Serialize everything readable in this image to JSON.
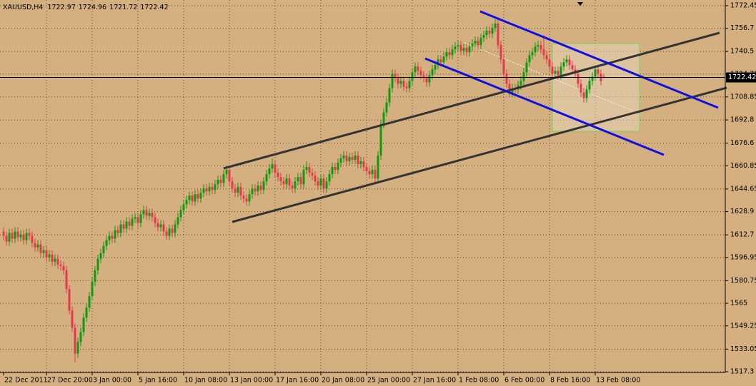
{
  "chart_data": {
    "type": "candlestick",
    "symbol": "XAUUSD,H4",
    "up_color": "#109a10",
    "down_color": "#e23a4c",
    "grid": true,
    "xlim": [
      -1.25,
      252.5
    ],
    "ylim": [
      1516.8,
      1776.4
    ],
    "yticks": [
      1517.3,
      1533.05,
      1549.25,
      1565.0,
      1580.75,
      1596.95,
      1612.7,
      1628.9,
      1644.65,
      1660.85,
      1676.6,
      1692.8,
      1708.85,
      1724.75,
      1740.5,
      1756.7,
      1772.45
    ],
    "xticks": [
      {
        "value": 0,
        "label": "22 Dec 2011"
      },
      {
        "value": 15,
        "label": "27 Dec 20:00"
      },
      {
        "value": 31,
        "label": "3 Jan 00:00"
      },
      {
        "value": 47,
        "label": "5 Jan 16:00"
      },
      {
        "value": 63,
        "label": "10 Jan 08:00"
      },
      {
        "value": 79,
        "label": "13 Jan 00:00"
      },
      {
        "value": 95,
        "label": "17 Jan 16:00"
      },
      {
        "value": 111,
        "label": "20 Jan 08:00"
      },
      {
        "value": 127,
        "label": "25 Jan 00:00"
      },
      {
        "value": 143,
        "label": "27 Jan 16:00"
      },
      {
        "value": 159,
        "label": "1 Feb 08:00"
      },
      {
        "value": 175,
        "label": "6 Feb 00:00"
      },
      {
        "value": 191,
        "label": "8 Feb 16:00"
      },
      {
        "value": 207,
        "label": "13 Feb 08:00"
      }
    ],
    "candles": [
      [
        1615,
        1618,
        1609,
        1612
      ],
      [
        1612,
        1615,
        1605,
        1608
      ],
      [
        1608,
        1617,
        1605,
        1614
      ],
      [
        1614,
        1617,
        1607,
        1610
      ],
      [
        1610,
        1618,
        1607,
        1615
      ],
      [
        1615,
        1618,
        1608,
        1611
      ],
      [
        1611,
        1616,
        1608,
        1613
      ],
      [
        1613,
        1616,
        1606,
        1609
      ],
      [
        1609,
        1617,
        1606,
        1614
      ],
      [
        1614,
        1617,
        1609,
        1612
      ],
      [
        1612,
        1615,
        1604,
        1607
      ],
      [
        1607,
        1610,
        1601,
        1604
      ],
      [
        1604,
        1609,
        1601,
        1606
      ],
      [
        1606,
        1609,
        1597,
        1600
      ],
      [
        1600,
        1605,
        1597,
        1602
      ],
      [
        1602,
        1605,
        1594,
        1597
      ],
      [
        1597,
        1602,
        1594,
        1599
      ],
      [
        1599,
        1602,
        1591,
        1594
      ],
      [
        1594,
        1599,
        1591,
        1596
      ],
      [
        1596,
        1599,
        1589,
        1592
      ],
      [
        1592,
        1595,
        1588,
        1591
      ],
      [
        1591,
        1594,
        1585,
        1588
      ],
      [
        1588,
        1591,
        1572,
        1575
      ],
      [
        1575,
        1578,
        1557,
        1560
      ],
      [
        1560,
        1563,
        1545,
        1548
      ],
      [
        1548,
        1551,
        1524,
        1530
      ],
      [
        1530,
        1541,
        1527,
        1538
      ],
      [
        1538,
        1548,
        1535,
        1545
      ],
      [
        1545,
        1558,
        1542,
        1555
      ],
      [
        1555,
        1565,
        1552,
        1562
      ],
      [
        1562,
        1573,
        1559,
        1570
      ],
      [
        1570,
        1583,
        1567,
        1580
      ],
      [
        1580,
        1591,
        1577,
        1588
      ],
      [
        1588,
        1599,
        1585,
        1596
      ],
      [
        1596,
        1603,
        1593,
        1600
      ],
      [
        1600,
        1608,
        1597,
        1605
      ],
      [
        1605,
        1612,
        1602,
        1609
      ],
      [
        1609,
        1615,
        1606,
        1612
      ],
      [
        1612,
        1615,
        1607,
        1610
      ],
      [
        1610,
        1619,
        1607,
        1616
      ],
      [
        1616,
        1619,
        1611,
        1614
      ],
      [
        1614,
        1623,
        1611,
        1620
      ],
      [
        1620,
        1623,
        1614,
        1617
      ],
      [
        1617,
        1625,
        1614,
        1622
      ],
      [
        1622,
        1625,
        1616,
        1619
      ],
      [
        1619,
        1627,
        1616,
        1624
      ],
      [
        1624,
        1628,
        1621,
        1625
      ],
      [
        1625,
        1628,
        1618,
        1621
      ],
      [
        1621,
        1630,
        1618,
        1627
      ],
      [
        1627,
        1633,
        1624,
        1630
      ],
      [
        1630,
        1633,
        1623,
        1626
      ],
      [
        1626,
        1631,
        1623,
        1628
      ],
      [
        1628,
        1631,
        1622,
        1625
      ],
      [
        1625,
        1628,
        1618,
        1621
      ],
      [
        1621,
        1624,
        1615,
        1618
      ],
      [
        1618,
        1623,
        1615,
        1620
      ],
      [
        1620,
        1623,
        1612,
        1615
      ],
      [
        1615,
        1618,
        1609,
        1612
      ],
      [
        1612,
        1620,
        1609,
        1617
      ],
      [
        1617,
        1620,
        1611,
        1614
      ],
      [
        1614,
        1623,
        1611,
        1620
      ],
      [
        1620,
        1628,
        1617,
        1625
      ],
      [
        1625,
        1633,
        1622,
        1630
      ],
      [
        1630,
        1637,
        1627,
        1634
      ],
      [
        1634,
        1640,
        1631,
        1637
      ],
      [
        1637,
        1643,
        1634,
        1640
      ],
      [
        1640,
        1643,
        1633,
        1636
      ],
      [
        1636,
        1644,
        1633,
        1641
      ],
      [
        1641,
        1644,
        1635,
        1638
      ],
      [
        1638,
        1645,
        1635,
        1642
      ],
      [
        1642,
        1648,
        1639,
        1645
      ],
      [
        1645,
        1648,
        1640,
        1643
      ],
      [
        1643,
        1649,
        1640,
        1646
      ],
      [
        1646,
        1649,
        1641,
        1644
      ],
      [
        1644,
        1651,
        1641,
        1648
      ],
      [
        1648,
        1654,
        1645,
        1651
      ],
      [
        1651,
        1654,
        1646,
        1649
      ],
      [
        1649,
        1658,
        1646,
        1655
      ],
      [
        1655,
        1661,
        1652,
        1658
      ],
      [
        1658,
        1661,
        1647,
        1650
      ],
      [
        1650,
        1653,
        1642,
        1645
      ],
      [
        1645,
        1648,
        1639,
        1642
      ],
      [
        1642,
        1649,
        1639,
        1646
      ],
      [
        1646,
        1649,
        1637,
        1640
      ],
      [
        1640,
        1643,
        1635,
        1638
      ],
      [
        1638,
        1641,
        1633,
        1636
      ],
      [
        1636,
        1644,
        1633,
        1641
      ],
      [
        1641,
        1648,
        1638,
        1645
      ],
      [
        1645,
        1648,
        1640,
        1643
      ],
      [
        1643,
        1650,
        1640,
        1647
      ],
      [
        1647,
        1650,
        1641,
        1644
      ],
      [
        1644,
        1653,
        1641,
        1650
      ],
      [
        1650,
        1658,
        1647,
        1655
      ],
      [
        1655,
        1662,
        1652,
        1659
      ],
      [
        1659,
        1666,
        1656,
        1662
      ],
      [
        1662,
        1665,
        1653,
        1656
      ],
      [
        1656,
        1659,
        1650,
        1653
      ],
      [
        1653,
        1656,
        1647,
        1650
      ],
      [
        1650,
        1653,
        1645,
        1648
      ],
      [
        1648,
        1655,
        1645,
        1652
      ],
      [
        1652,
        1655,
        1644,
        1647
      ],
      [
        1647,
        1650,
        1642,
        1645
      ],
      [
        1645,
        1653,
        1642,
        1650
      ],
      [
        1650,
        1656,
        1647,
        1653
      ],
      [
        1653,
        1656,
        1645,
        1648
      ],
      [
        1648,
        1661,
        1645,
        1658
      ],
      [
        1658,
        1664,
        1655,
        1660
      ],
      [
        1660,
        1663,
        1653,
        1656
      ],
      [
        1656,
        1659,
        1651,
        1654
      ],
      [
        1654,
        1657,
        1647,
        1650
      ],
      [
        1650,
        1653,
        1644,
        1647
      ],
      [
        1647,
        1655,
        1644,
        1652
      ],
      [
        1652,
        1655,
        1642,
        1645
      ],
      [
        1645,
        1653,
        1642,
        1650
      ],
      [
        1650,
        1658,
        1647,
        1655
      ],
      [
        1655,
        1663,
        1652,
        1660
      ],
      [
        1660,
        1663,
        1655,
        1658
      ],
      [
        1658,
        1666,
        1655,
        1663
      ],
      [
        1663,
        1669,
        1660,
        1666
      ],
      [
        1666,
        1671,
        1663,
        1668
      ],
      [
        1668,
        1671,
        1661,
        1664
      ],
      [
        1664,
        1670,
        1661,
        1667
      ],
      [
        1667,
        1670,
        1662,
        1665
      ],
      [
        1665,
        1671,
        1662,
        1668
      ],
      [
        1668,
        1671,
        1659,
        1662
      ],
      [
        1662,
        1667,
        1659,
        1664
      ],
      [
        1664,
        1667,
        1657,
        1660
      ],
      [
        1660,
        1663,
        1654,
        1657
      ],
      [
        1657,
        1660,
        1652,
        1655
      ],
      [
        1655,
        1661,
        1652,
        1658
      ],
      [
        1658,
        1661,
        1649,
        1652
      ],
      [
        1652,
        1671,
        1649,
        1668
      ],
      [
        1668,
        1693,
        1665,
        1690
      ],
      [
        1690,
        1701,
        1687,
        1698
      ],
      [
        1698,
        1708,
        1695,
        1705
      ],
      [
        1705,
        1718,
        1702,
        1715
      ],
      [
        1715,
        1728,
        1712,
        1725
      ],
      [
        1725,
        1728,
        1719,
        1722
      ],
      [
        1722,
        1725,
        1715,
        1718
      ],
      [
        1718,
        1723,
        1715,
        1720
      ],
      [
        1720,
        1723,
        1713,
        1716
      ],
      [
        1716,
        1719,
        1712,
        1715
      ],
      [
        1715,
        1723,
        1712,
        1720
      ],
      [
        1720,
        1729,
        1717,
        1726
      ],
      [
        1726,
        1733,
        1723,
        1730
      ],
      [
        1730,
        1733,
        1724,
        1727
      ],
      [
        1727,
        1730,
        1721,
        1724
      ],
      [
        1724,
        1727,
        1719,
        1722
      ],
      [
        1722,
        1725,
        1716,
        1719
      ],
      [
        1719,
        1727,
        1716,
        1724
      ],
      [
        1724,
        1731,
        1721,
        1728
      ],
      [
        1728,
        1734,
        1725,
        1731
      ],
      [
        1731,
        1738,
        1728,
        1735
      ],
      [
        1735,
        1738,
        1730,
        1733
      ],
      [
        1733,
        1740,
        1730,
        1737
      ],
      [
        1737,
        1743,
        1734,
        1740
      ],
      [
        1740,
        1743,
        1735,
        1738
      ],
      [
        1738,
        1745,
        1735,
        1742
      ],
      [
        1742,
        1747,
        1739,
        1744
      ],
      [
        1744,
        1748,
        1741,
        1745
      ],
      [
        1745,
        1748,
        1738,
        1741
      ],
      [
        1741,
        1746,
        1738,
        1743
      ],
      [
        1743,
        1746,
        1737,
        1740
      ],
      [
        1740,
        1747,
        1737,
        1744
      ],
      [
        1744,
        1749,
        1741,
        1746
      ],
      [
        1746,
        1751,
        1743,
        1748
      ],
      [
        1748,
        1751,
        1742,
        1745
      ],
      [
        1745,
        1753,
        1742,
        1750
      ],
      [
        1750,
        1755,
        1747,
        1752
      ],
      [
        1752,
        1758,
        1749,
        1755
      ],
      [
        1755,
        1758,
        1750,
        1753
      ],
      [
        1753,
        1760,
        1750,
        1757
      ],
      [
        1757,
        1763,
        1754,
        1760
      ],
      [
        1760,
        1763,
        1742,
        1745
      ],
      [
        1745,
        1748,
        1732,
        1735
      ],
      [
        1735,
        1738,
        1722,
        1725
      ],
      [
        1725,
        1728,
        1715,
        1718
      ],
      [
        1718,
        1721,
        1709,
        1712
      ],
      [
        1712,
        1718,
        1709,
        1715
      ],
      [
        1715,
        1718,
        1711,
        1714
      ],
      [
        1714,
        1720,
        1711,
        1717
      ],
      [
        1717,
        1723,
        1714,
        1720
      ],
      [
        1720,
        1729,
        1717,
        1726
      ],
      [
        1726,
        1736,
        1723,
        1733
      ],
      [
        1733,
        1741,
        1730,
        1738
      ],
      [
        1738,
        1743,
        1735,
        1740
      ],
      [
        1740,
        1747,
        1737,
        1744
      ],
      [
        1744,
        1748,
        1741,
        1745
      ],
      [
        1745,
        1748,
        1739,
        1742
      ],
      [
        1742,
        1752,
        1735,
        1738
      ],
      [
        1738,
        1741,
        1732,
        1735
      ],
      [
        1735,
        1738,
        1727,
        1730
      ],
      [
        1730,
        1733,
        1722,
        1725
      ],
      [
        1725,
        1730,
        1722,
        1727
      ],
      [
        1727,
        1730,
        1721,
        1724
      ],
      [
        1724,
        1733,
        1721,
        1730
      ],
      [
        1730,
        1736,
        1727,
        1733
      ],
      [
        1733,
        1738,
        1730,
        1735
      ],
      [
        1735,
        1738,
        1728,
        1731
      ],
      [
        1731,
        1734,
        1725,
        1728
      ],
      [
        1728,
        1731,
        1722,
        1725
      ],
      [
        1725,
        1728,
        1715,
        1718
      ],
      [
        1718,
        1721,
        1709,
        1712
      ],
      [
        1712,
        1715,
        1705,
        1708
      ],
      [
        1708,
        1717,
        1705,
        1714
      ],
      [
        1714,
        1723,
        1711,
        1720
      ],
      [
        1720,
        1726,
        1717,
        1723
      ],
      [
        1723,
        1731,
        1720,
        1728
      ],
      [
        1728,
        1731,
        1722,
        1725
      ],
      [
        1725,
        1728,
        1717,
        1720
      ],
      [
        1722.97,
        1724.96,
        1721.72,
        1722.42
      ]
    ]
  }
}
